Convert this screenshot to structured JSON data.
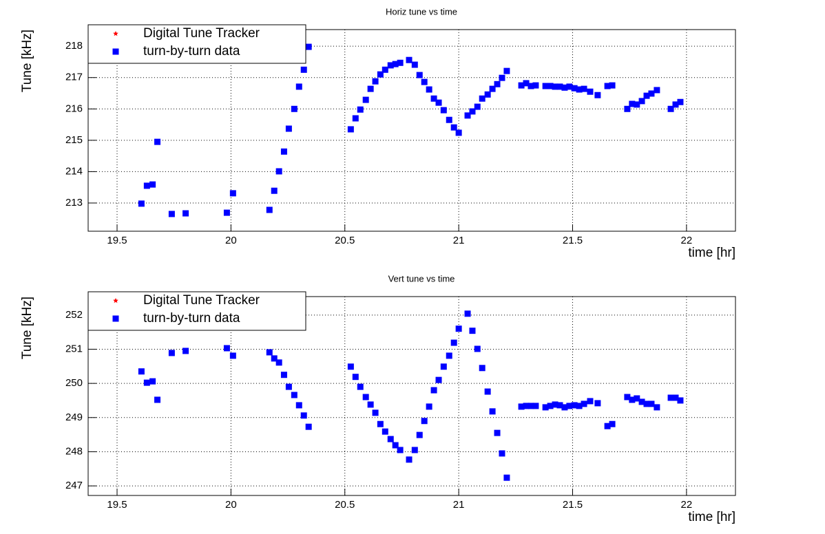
{
  "chart_data": [
    {
      "type": "scatter",
      "title": "Horiz tune vs time",
      "xlabel": "time [hr]",
      "ylabel": "Tune [kHz]",
      "xlim": [
        19.373,
        22.215
      ],
      "ylim": [
        212.1,
        218.53
      ],
      "xticks": [
        19.5,
        20,
        20.5,
        21,
        21.5,
        22
      ],
      "yticks": [
        213,
        214,
        215,
        216,
        217,
        218
      ],
      "grid": true,
      "legend": "top-left",
      "series": [
        {
          "name": "Digital Tune Tracker",
          "color": "#ff0000",
          "marker": "star",
          "x": [],
          "values": []
        },
        {
          "name": "turn-by-turn data",
          "color": "#0000ff",
          "marker": "square",
          "x": [
            19.607,
            19.631,
            19.656,
            19.677,
            19.74,
            19.801,
            19.982,
            20.009,
            20.169,
            20.19,
            20.211,
            20.233,
            20.254,
            20.278,
            20.299,
            20.32,
            20.341,
            20.526,
            20.547,
            20.568,
            20.592,
            20.613,
            20.634,
            20.656,
            20.677,
            20.701,
            20.722,
            20.743,
            20.782,
            20.807,
            20.828,
            20.849,
            20.87,
            20.891,
            20.912,
            20.934,
            20.958,
            20.979,
            21.0,
            21.039,
            21.06,
            21.082,
            21.103,
            21.127,
            21.148,
            21.169,
            21.19,
            21.211,
            21.275,
            21.296,
            21.317,
            21.338,
            21.381,
            21.402,
            21.423,
            21.444,
            21.465,
            21.486,
            21.508,
            21.529,
            21.55,
            21.577,
            21.61,
            21.653,
            21.674,
            21.74,
            21.761,
            21.782,
            21.804,
            21.825,
            21.846,
            21.87,
            21.931,
            21.952,
            21.973
          ],
          "values": [
            212.98,
            213.55,
            213.59,
            214.95,
            212.65,
            212.67,
            212.69,
            213.31,
            212.78,
            213.39,
            214.01,
            214.64,
            215.37,
            216.0,
            216.71,
            217.25,
            217.98,
            215.35,
            215.7,
            215.98,
            216.29,
            216.64,
            216.88,
            217.1,
            217.25,
            217.39,
            217.43,
            217.47,
            217.56,
            217.41,
            217.08,
            216.86,
            216.62,
            216.33,
            216.2,
            215.96,
            215.65,
            215.41,
            215.24,
            215.79,
            215.92,
            216.07,
            216.33,
            216.46,
            216.64,
            216.79,
            216.99,
            217.21,
            216.75,
            216.82,
            216.73,
            216.75,
            216.73,
            216.73,
            216.71,
            216.71,
            216.68,
            216.71,
            216.66,
            216.62,
            216.64,
            216.55,
            216.44,
            216.73,
            216.75,
            216.0,
            216.16,
            216.14,
            216.25,
            216.42,
            216.49,
            216.6,
            216.0,
            216.14,
            216.22
          ]
        }
      ]
    },
    {
      "type": "scatter",
      "title": "Vert tune vs time",
      "xlabel": "time [hr]",
      "ylabel": "Tune [kHz]",
      "xlim": [
        19.373,
        22.215
      ],
      "ylim": [
        246.72,
        252.54
      ],
      "xticks": [
        19.5,
        20,
        20.5,
        21,
        21.5,
        22
      ],
      "yticks": [
        247,
        248,
        249,
        250,
        251,
        252
      ],
      "grid": true,
      "legend": "top-left",
      "series": [
        {
          "name": "Digital Tune Tracker",
          "color": "#ff0000",
          "marker": "star",
          "x": [],
          "values": []
        },
        {
          "name": "turn-by-turn data",
          "color": "#0000ff",
          "marker": "square",
          "x": [
            19.607,
            19.631,
            19.656,
            19.677,
            19.74,
            19.801,
            19.982,
            20.009,
            20.169,
            20.19,
            20.211,
            20.233,
            20.254,
            20.278,
            20.299,
            20.32,
            20.341,
            20.526,
            20.547,
            20.568,
            20.592,
            20.613,
            20.634,
            20.656,
            20.677,
            20.701,
            20.722,
            20.743,
            20.782,
            20.807,
            20.828,
            20.849,
            20.87,
            20.891,
            20.912,
            20.934,
            20.958,
            20.979,
            21.0,
            21.039,
            21.06,
            21.082,
            21.103,
            21.127,
            21.148,
            21.169,
            21.19,
            21.211,
            21.275,
            21.296,
            21.317,
            21.338,
            21.381,
            21.402,
            21.423,
            21.444,
            21.465,
            21.486,
            21.508,
            21.529,
            21.55,
            21.577,
            21.61,
            21.653,
            21.674,
            21.74,
            21.761,
            21.782,
            21.804,
            21.825,
            21.846,
            21.87,
            21.931,
            21.952,
            21.973
          ],
          "values": [
            250.35,
            250.02,
            250.06,
            249.52,
            250.89,
            250.95,
            251.03,
            250.81,
            250.91,
            250.73,
            250.61,
            250.25,
            249.9,
            249.66,
            249.36,
            249.06,
            248.73,
            250.49,
            250.19,
            249.9,
            249.6,
            249.38,
            249.14,
            248.81,
            248.59,
            248.37,
            248.19,
            248.05,
            247.77,
            248.05,
            248.49,
            248.9,
            249.32,
            249.8,
            250.1,
            250.49,
            250.81,
            251.19,
            251.6,
            252.04,
            251.54,
            251.01,
            250.45,
            249.76,
            249.18,
            248.55,
            247.95,
            247.24,
            249.32,
            249.34,
            249.34,
            249.34,
            249.3,
            249.34,
            249.38,
            249.36,
            249.3,
            249.34,
            249.36,
            249.34,
            249.4,
            249.48,
            249.42,
            248.75,
            248.81,
            249.6,
            249.52,
            249.56,
            249.46,
            249.4,
            249.4,
            249.3,
            249.58,
            249.58,
            249.5
          ]
        }
      ]
    }
  ]
}
